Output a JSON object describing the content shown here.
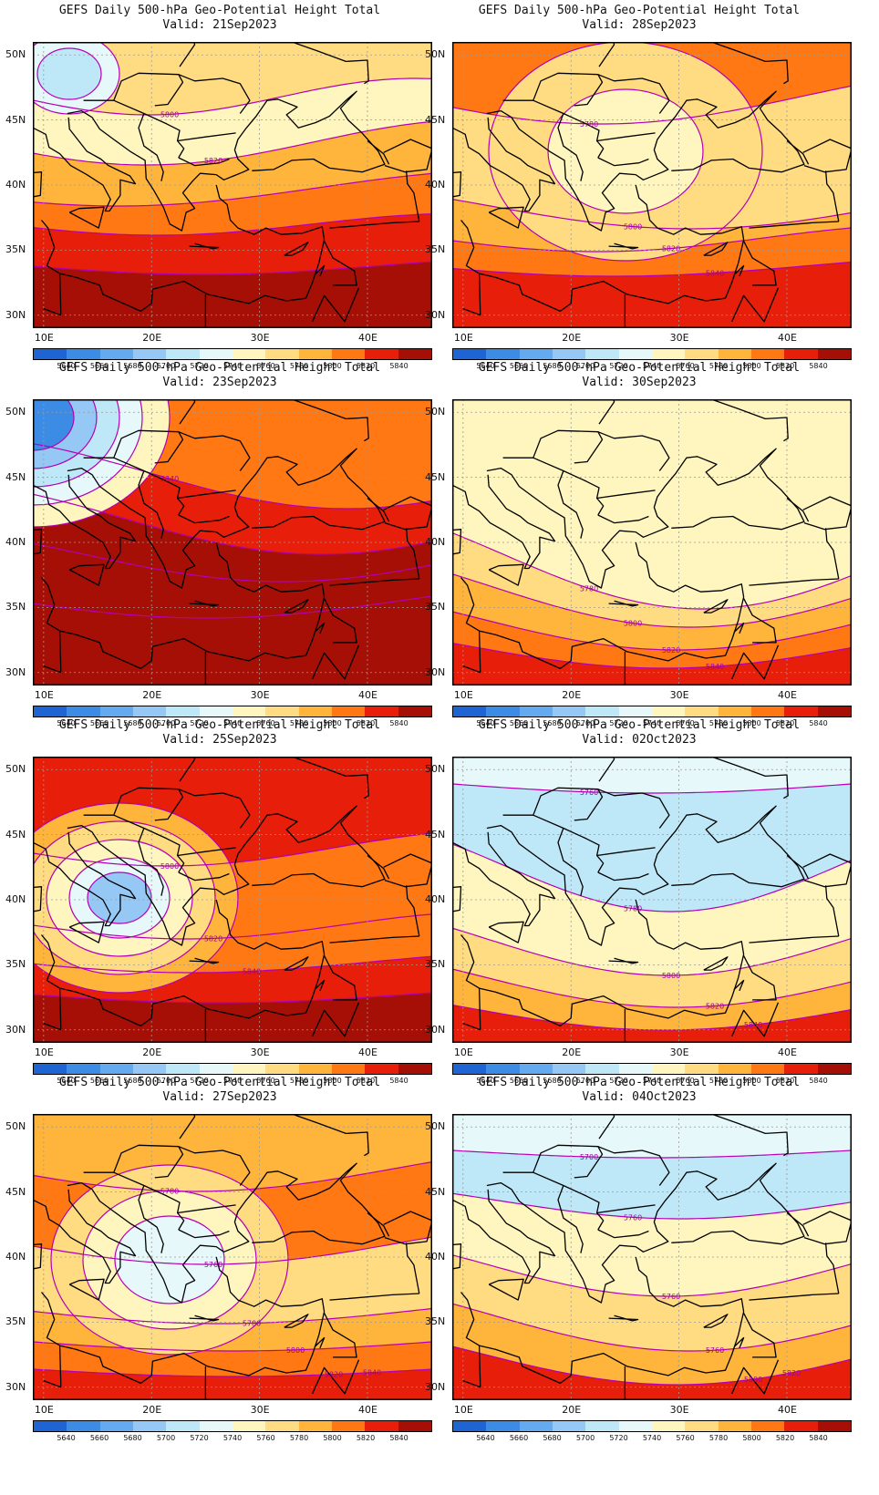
{
  "colorbar": {
    "levels": [
      "5640",
      "5660",
      "5680",
      "5700",
      "5720",
      "5740",
      "5760",
      "5780",
      "5800",
      "5820",
      "5840"
    ],
    "colors": [
      "#1e64d2",
      "#3c8ce6",
      "#64aaf0",
      "#96c8f5",
      "#bee8f8",
      "#e6f8fa",
      "#fff5be",
      "#ffdc82",
      "#ffb43c",
      "#ff7814",
      "#e61e0a",
      "#a50f05"
    ]
  },
  "map": {
    "lat_ticks": [
      "30N",
      "35N",
      "40N",
      "45N",
      "50N"
    ],
    "lon_ticks": [
      "10E",
      "20E",
      "30E",
      "40E"
    ]
  },
  "panels": [
    {
      "title": "GEFS Daily 500-hPa Geo-Potential Height Total",
      "valid": "Valid: 21Sep2023",
      "contour_labels": [
        "5800",
        "5820"
      ]
    },
    {
      "title": "GEFS Daily 500-hPa Geo-Potential Height Total",
      "valid": "Valid: 28Sep2023",
      "contour_labels": [
        "5780",
        "5800",
        "5820",
        "5840"
      ]
    },
    {
      "title": "GEFS Daily 500-hPa Geo-Potential Height Total",
      "valid": "Valid: 23Sep2023",
      "contour_labels": [
        "5840"
      ]
    },
    {
      "title": "GEFS Daily 500-hPa Geo-Potential Height Total",
      "valid": "Valid: 30Sep2023",
      "contour_labels": [
        "5780",
        "5800",
        "5820",
        "5840"
      ]
    },
    {
      "title": "GEFS Daily 500-hPa Geo-Potential Height Total",
      "valid": "Valid: 25Sep2023",
      "contour_labels": [
        "5800",
        "5820",
        "5840"
      ]
    },
    {
      "title": "GEFS Daily 500-hPa Geo-Potential Height Total",
      "valid": "Valid: 02Oct2023",
      "contour_labels": [
        "5760",
        "5780",
        "5800",
        "5820",
        "5840"
      ]
    },
    {
      "title": "GEFS Daily 500-hPa Geo-Potential Height Total",
      "valid": "Valid: 27Sep2023",
      "contour_labels": [
        "5780",
        "5760",
        "5780",
        "5800",
        "5820",
        "5840"
      ]
    },
    {
      "title": "GEFS Daily 500-hPa Geo-Potential Height Total",
      "valid": "Valid: 04Oct2023",
      "contour_labels": [
        "5700",
        "5760",
        "5760",
        "5760",
        "5800",
        "5820"
      ]
    }
  ]
}
